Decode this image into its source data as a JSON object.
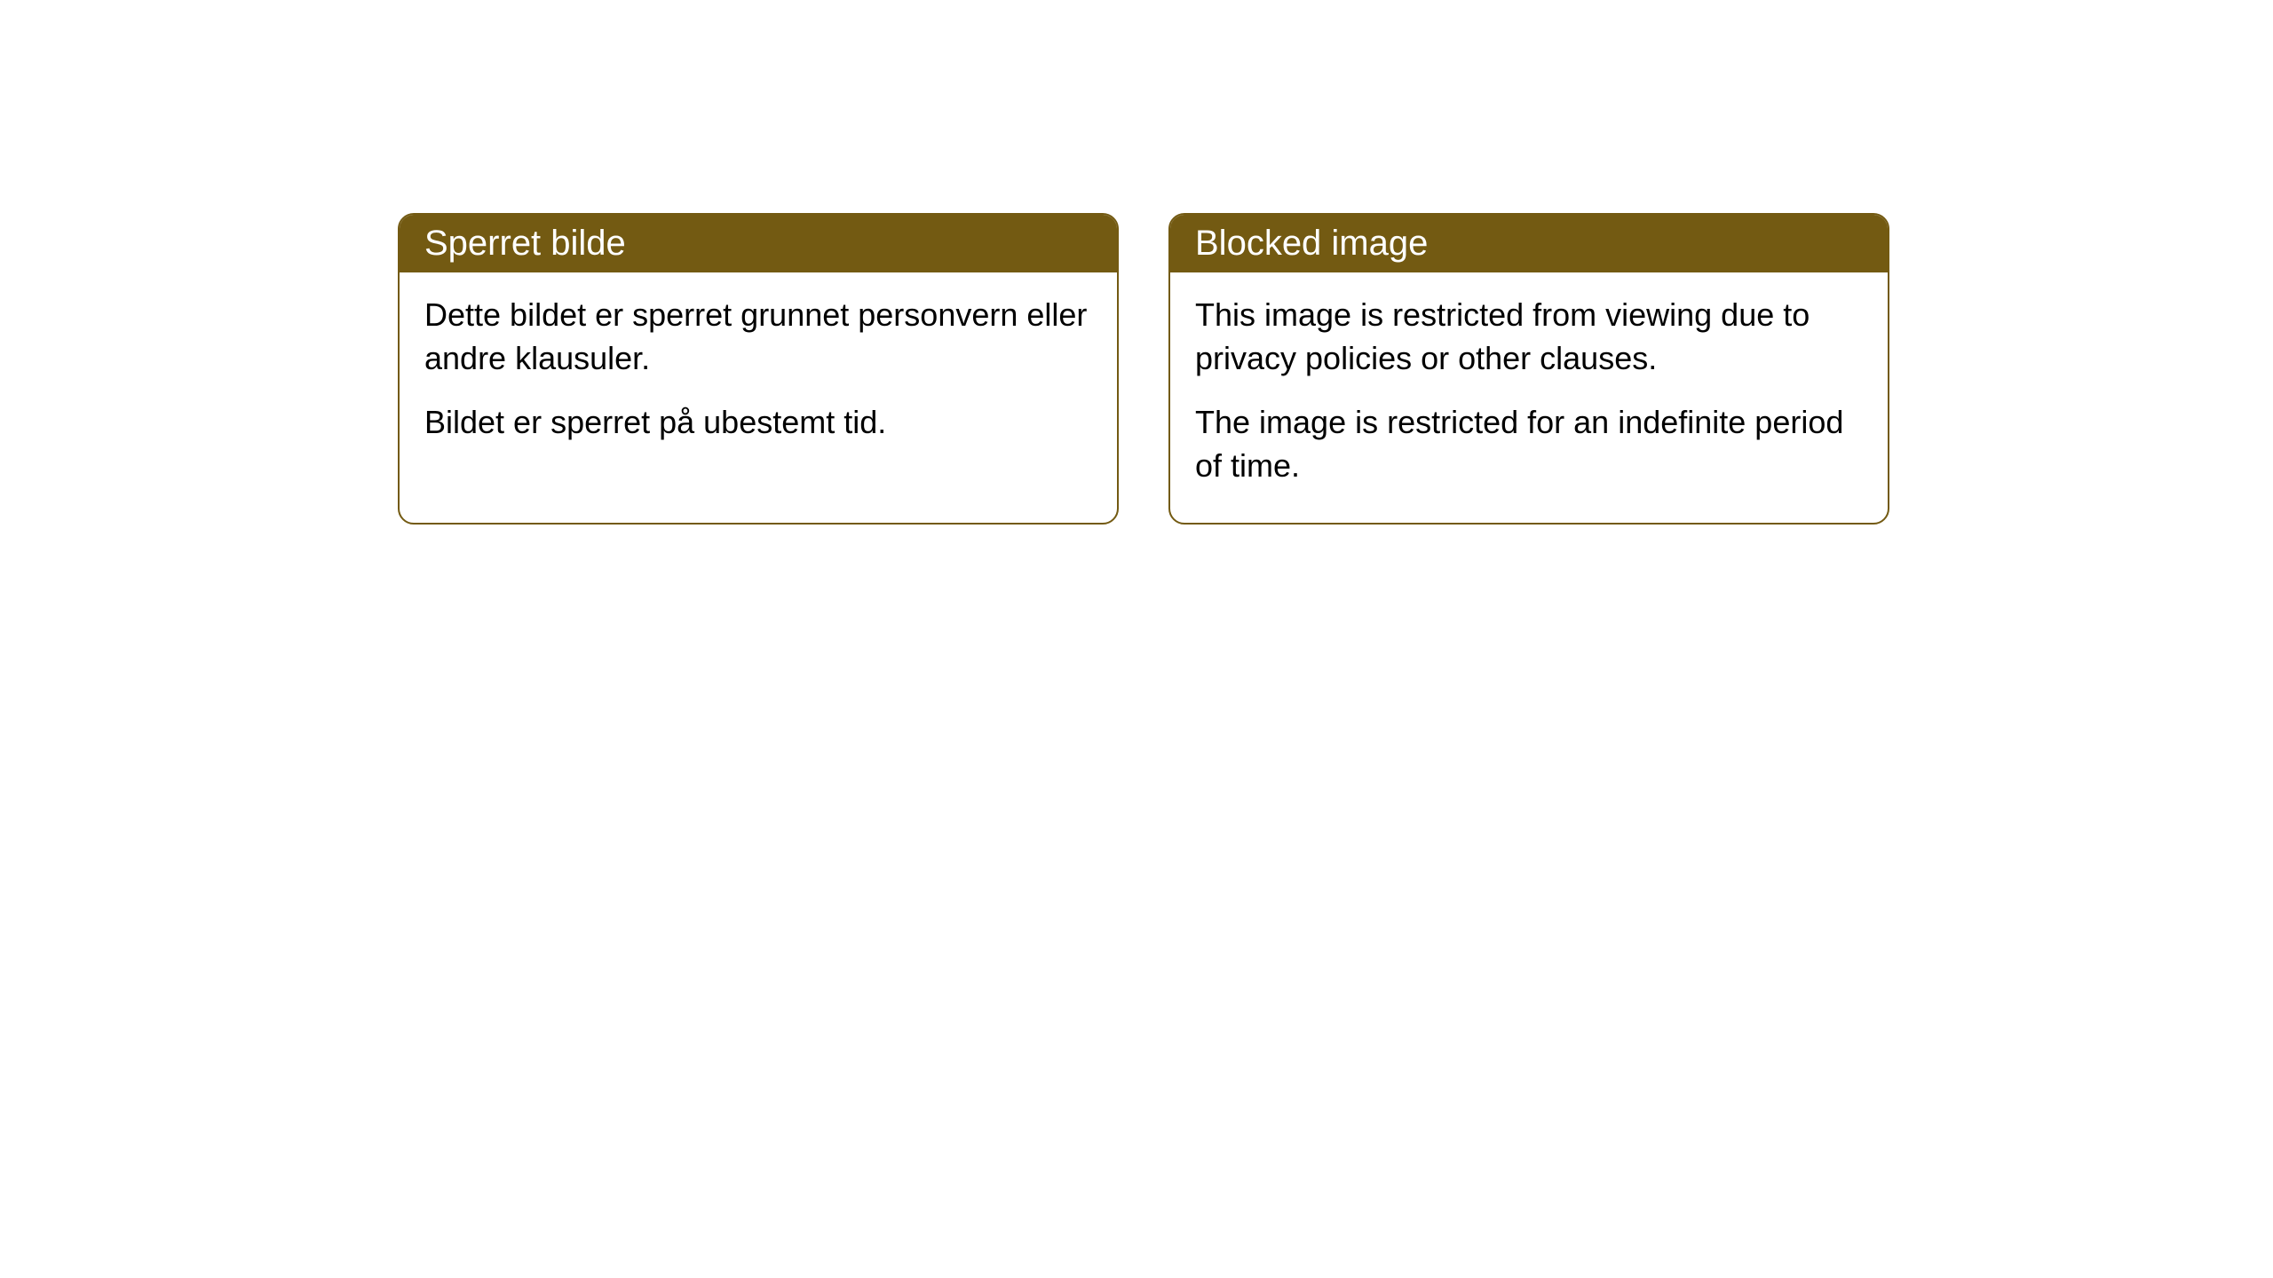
{
  "cards": [
    {
      "title": "Sperret bilde",
      "paragraph1": "Dette bildet er sperret grunnet personvern eller andre klausuler.",
      "paragraph2": "Bildet er sperret på ubestemt tid."
    },
    {
      "title": "Blocked image",
      "paragraph1": "This image is restricted from viewing due to privacy policies or other clauses.",
      "paragraph2": "The image is restricted for an indefinite period of time."
    }
  ],
  "styling": {
    "header_background": "#735a12",
    "header_text_color": "#ffffff",
    "border_color": "#735a12",
    "body_background": "#ffffff",
    "body_text_color": "#000000",
    "border_radius": 18,
    "title_fontsize": 40,
    "body_fontsize": 36
  }
}
